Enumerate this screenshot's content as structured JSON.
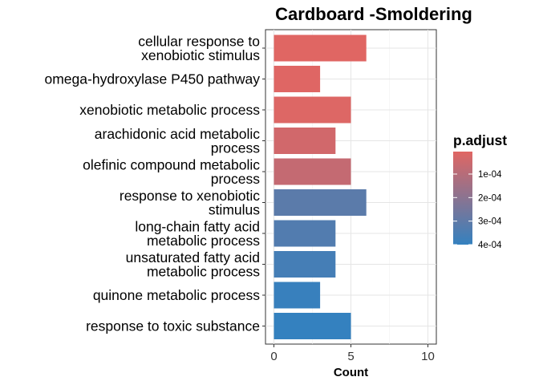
{
  "chart_data": {
    "type": "bar",
    "orientation": "horizontal",
    "title": "Cardboard -Smoldering",
    "xlabel": "Count",
    "ylabel": "",
    "xlim": [
      0,
      10
    ],
    "x_ticks": [
      0,
      5,
      10
    ],
    "grid": true,
    "categories": [
      [
        "cellular response to",
        "xenobiotic stimulus"
      ],
      [
        "omega-hydroxylase P450 pathway"
      ],
      [
        "xenobiotic metabolic process"
      ],
      [
        "arachidonic acid metabolic",
        "process"
      ],
      [
        "olefinic compound metabolic",
        "process"
      ],
      [
        "response to xenobiotic",
        "stimulus"
      ],
      [
        "long-chain fatty acid",
        "metabolic process"
      ],
      [
        "unsaturated fatty acid",
        "metabolic process"
      ],
      [
        "quinone metabolic process"
      ],
      [
        "response to toxic substance"
      ]
    ],
    "values": [
      6,
      3,
      5,
      4,
      5,
      6,
      4,
      4,
      3,
      5
    ],
    "p_adjust": [
      5e-06,
      8e-06,
      1.2e-05,
      4e-05,
      7e-05,
      0.00031,
      0.00033,
      0.00036,
      0.00039,
      0.0004
    ],
    "legend": {
      "title": "p.adjust",
      "position": "right",
      "tick_values": [
        0.0001,
        0.0002,
        0.0003,
        0.0004
      ],
      "tick_labels": [
        "1e-04",
        "2e-04",
        "3e-04",
        "4e-04"
      ],
      "range": [
        4.6e-06,
        0.0004
      ],
      "color_low": "#E06663",
      "color_high": "#3481BF"
    }
  }
}
